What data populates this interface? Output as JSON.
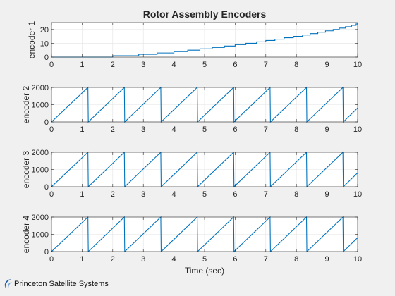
{
  "chart_data": {
    "type": "line",
    "title": "Rotor Assembly Encoders",
    "xlabel": "Time (sec)",
    "xlim": [
      0,
      10
    ],
    "xticks": [
      "0",
      "1",
      "2",
      "3",
      "4",
      "5",
      "6",
      "7",
      "8",
      "9",
      "10"
    ],
    "grid": true,
    "line_color": "#0072bd",
    "panels": [
      {
        "ylabel": "encoder 1",
        "ylim": [
          0,
          25
        ],
        "yticks": [
          "0",
          "10",
          "20"
        ],
        "ytick_values": [
          0,
          10,
          20
        ],
        "kind": "staircase",
        "steps": [
          {
            "t": 0.0,
            "v": 0
          },
          {
            "t": 2.0,
            "v": 1
          },
          {
            "t": 2.85,
            "v": 2
          },
          {
            "t": 3.45,
            "v": 3
          },
          {
            "t": 4.0,
            "v": 4
          },
          {
            "t": 4.45,
            "v": 5
          },
          {
            "t": 4.85,
            "v": 6
          },
          {
            "t": 5.25,
            "v": 7
          },
          {
            "t": 5.65,
            "v": 8
          },
          {
            "t": 6.0,
            "v": 9
          },
          {
            "t": 6.35,
            "v": 10
          },
          {
            "t": 6.7,
            "v": 11
          },
          {
            "t": 7.0,
            "v": 12
          },
          {
            "t": 7.3,
            "v": 13
          },
          {
            "t": 7.6,
            "v": 14
          },
          {
            "t": 7.9,
            "v": 15
          },
          {
            "t": 8.2,
            "v": 16
          },
          {
            "t": 8.45,
            "v": 17
          },
          {
            "t": 8.7,
            "v": 18
          },
          {
            "t": 8.95,
            "v": 19
          },
          {
            "t": 9.2,
            "v": 20
          },
          {
            "t": 9.4,
            "v": 21
          },
          {
            "t": 9.6,
            "v": 22
          },
          {
            "t": 9.8,
            "v": 23
          },
          {
            "t": 9.95,
            "v": 24
          },
          {
            "t": 10.0,
            "v": 24
          }
        ]
      },
      {
        "ylabel": "encoder 2",
        "ylim": [
          0,
          2000
        ],
        "yticks": [
          "0",
          "1000",
          "2000"
        ],
        "ytick_values": [
          0,
          1000,
          2000
        ],
        "kind": "sawtooth",
        "period": 1.19,
        "max": 2000
      },
      {
        "ylabel": "encoder 3",
        "ylim": [
          0,
          2000
        ],
        "yticks": [
          "0",
          "1000",
          "2000"
        ],
        "ytick_values": [
          0,
          1000,
          2000
        ],
        "kind": "sawtooth",
        "period": 1.19,
        "max": 2000
      },
      {
        "ylabel": "encoder 4",
        "ylim": [
          0,
          2000
        ],
        "yticks": [
          "0",
          "1000",
          "2000"
        ],
        "ytick_values": [
          0,
          1000,
          2000
        ],
        "kind": "sawtooth",
        "period": 1.19,
        "max": 2000
      }
    ]
  },
  "logo": {
    "text": "Princeton Satellite Systems",
    "icon": "psslogo-swoosh-icon"
  }
}
